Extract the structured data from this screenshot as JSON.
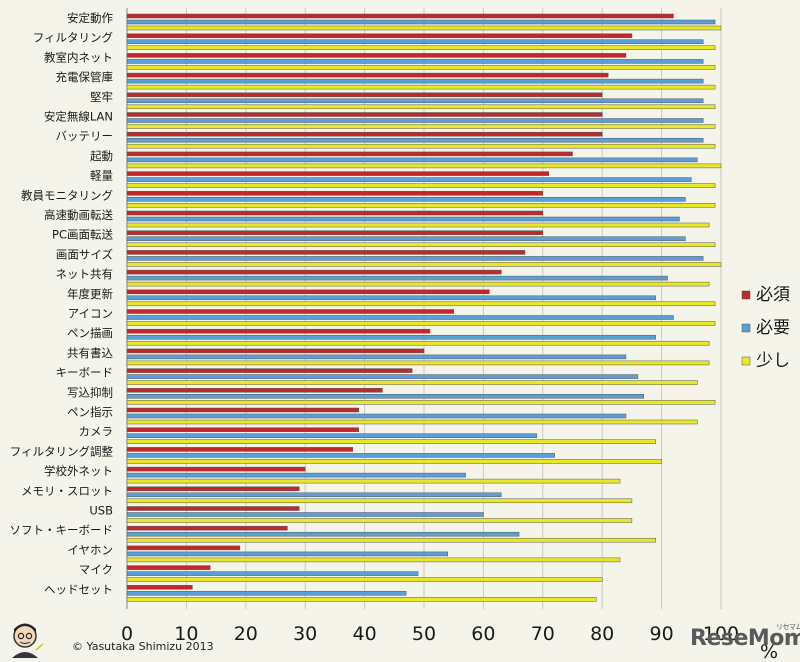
{
  "chart_data": {
    "type": "bar",
    "orientation": "horizontal",
    "categories": [
      "安定動作",
      "フィルタリング",
      "教室内ネット",
      "充電保管庫",
      "堅牢",
      "安定無線LAN",
      "バッテリー",
      "起動",
      "軽量",
      "教員モニタリング",
      "高速動画転送",
      "PC画面転送",
      "画面サイズ",
      "ネット共有",
      "年度更新",
      "アイコン",
      "ペン描画",
      "共有書込",
      "キーボード",
      "写込抑制",
      "ペン指示",
      "カメラ",
      "フィルタリング調整",
      "学校外ネット",
      "メモリ・スロット",
      "USB",
      "ソフト・キーボード",
      "イヤホン",
      "マイク",
      "ヘッドセット"
    ],
    "series": [
      {
        "name": "必須",
        "color": "#c0282a",
        "values": [
          92,
          85,
          84,
          81,
          80,
          80,
          80,
          75,
          71,
          70,
          70,
          70,
          67,
          63,
          61,
          55,
          51,
          50,
          48,
          43,
          39,
          39,
          38,
          30,
          29,
          29,
          27,
          19,
          14,
          11
        ]
      },
      {
        "name": "必要",
        "color": "#5aa0d6",
        "values": [
          99,
          97,
          97,
          97,
          97,
          97,
          97,
          96,
          95,
          94,
          93,
          94,
          97,
          91,
          89,
          92,
          89,
          84,
          86,
          87,
          84,
          69,
          72,
          57,
          63,
          60,
          66,
          54,
          49,
          47
        ]
      },
      {
        "name": "少し",
        "color": "#e8e82a",
        "values": [
          100,
          99,
          99,
          99,
          99,
          99,
          99,
          100,
          99,
          99,
          98,
          99,
          100,
          98,
          99,
          99,
          98,
          98,
          96,
          99,
          96,
          89,
          90,
          83,
          85,
          85,
          89,
          83,
          80,
          79
        ]
      }
    ],
    "xlim": [
      0,
      100
    ],
    "xticks": [
      0,
      10,
      20,
      30,
      40,
      50,
      60,
      70,
      80,
      90,
      100
    ],
    "xunit": "%",
    "grid": "vertical",
    "legend_position": "right"
  },
  "copyright": "© Yasutaka Shimizu 2013",
  "logo": {
    "text": "ReseMom",
    "small": "リセマム"
  }
}
